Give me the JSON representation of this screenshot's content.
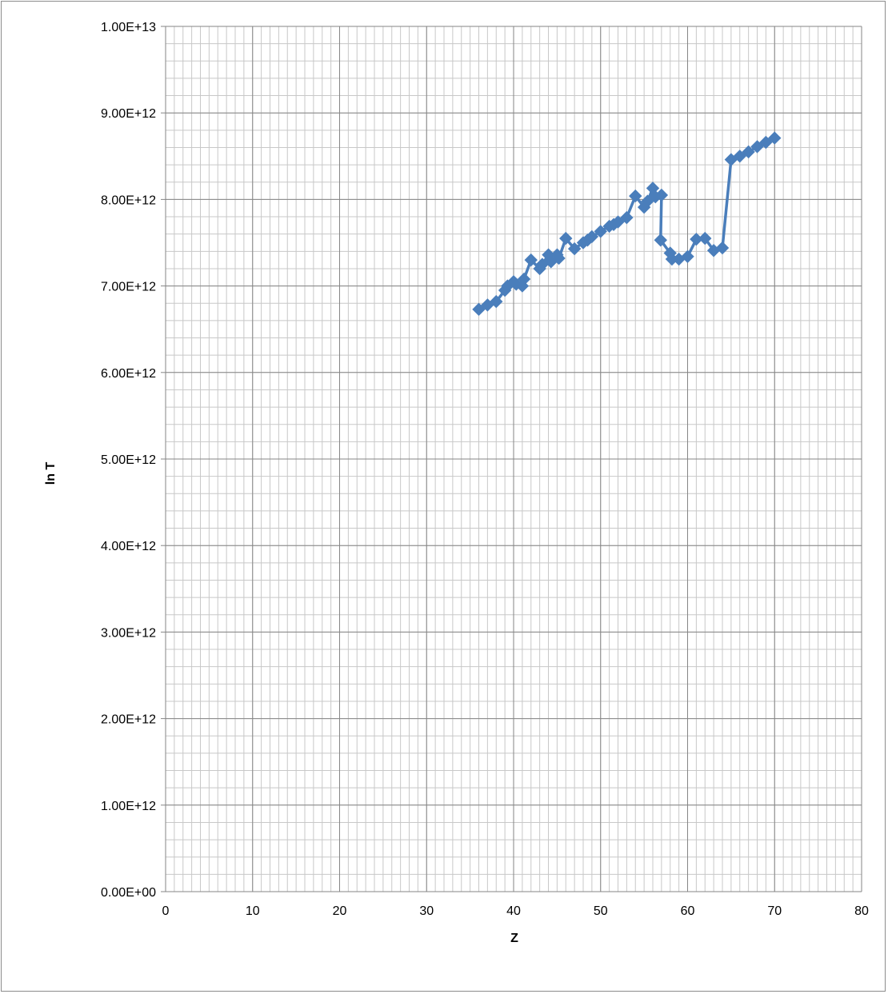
{
  "chart_data": {
    "type": "line",
    "title": "",
    "xlabel": "Z",
    "ylabel": "ln T",
    "xlim": [
      0,
      80
    ],
    "ylim": [
      0,
      10000000000000
    ],
    "x_ticks": [
      0,
      10,
      20,
      30,
      40,
      50,
      60,
      70,
      80
    ],
    "x_tick_labels": [
      "0",
      "10",
      "20",
      "30",
      "40",
      "50",
      "60",
      "70",
      "80"
    ],
    "y_ticks": [
      0,
      1000000000000,
      2000000000000,
      3000000000000,
      4000000000000,
      5000000000000,
      6000000000000,
      7000000000000,
      8000000000000,
      9000000000000,
      10000000000000
    ],
    "y_tick_labels": [
      "0.00E+00",
      "1.00E+12",
      "2.00E+12",
      "3.00E+12",
      "4.00E+12",
      "5.00E+12",
      "6.00E+12",
      "7.00E+12",
      "8.00E+12",
      "9.00E+12",
      "1.00E+13"
    ],
    "grid": true,
    "minor_grid": true,
    "legend": "none",
    "colors": {
      "series": "#4a7ebb",
      "grid_major": "#868686",
      "grid_minor": "#c8c8c8",
      "frame": "#8c8c8c"
    },
    "series": [
      {
        "marker": "diamond",
        "points": [
          [
            36,
            6730000000000.0
          ],
          [
            37,
            6780000000000.0
          ],
          [
            38,
            6820000000000.0
          ],
          [
            39,
            6950000000000.0
          ],
          [
            39.3,
            7000000000000.0
          ],
          [
            40,
            7050000000000.0
          ],
          [
            40.3,
            7020000000000.0
          ],
          [
            41,
            7000000000000.0
          ],
          [
            41.2,
            7080000000000.0
          ],
          [
            42,
            7300000000000.0
          ],
          [
            43,
            7200000000000.0
          ],
          [
            43.3,
            7250000000000.0
          ],
          [
            44,
            7360000000000.0
          ],
          [
            44.3,
            7280000000000.0
          ],
          [
            45,
            7360000000000.0
          ],
          [
            45.2,
            7320000000000.0
          ],
          [
            46,
            7550000000000.0
          ],
          [
            47,
            7430000000000.0
          ],
          [
            48,
            7500000000000.0
          ],
          [
            48.5,
            7530000000000.0
          ],
          [
            49,
            7570000000000.0
          ],
          [
            50,
            7630000000000.0
          ],
          [
            51,
            7690000000000.0
          ],
          [
            51.5,
            7710000000000.0
          ],
          [
            52,
            7740000000000.0
          ],
          [
            53,
            7790000000000.0
          ],
          [
            54,
            8040000000000.0
          ],
          [
            55,
            7910000000000.0
          ],
          [
            55.4,
            7980000000000.0
          ],
          [
            56,
            8130000000000.0
          ],
          [
            56.3,
            8030000000000.0
          ],
          [
            57,
            8050000000000.0
          ],
          [
            56.9,
            7530000000000.0
          ],
          [
            58,
            7380000000000.0
          ],
          [
            58.2,
            7310000000000.0
          ],
          [
            59,
            7310000000000.0
          ],
          [
            60,
            7340000000000.0
          ],
          [
            61,
            7540000000000.0
          ],
          [
            62,
            7550000000000.0
          ],
          [
            63,
            7410000000000.0
          ],
          [
            64,
            7440000000000.0
          ],
          [
            65,
            8460000000000.0
          ],
          [
            66,
            8500000000000.0
          ],
          [
            67,
            8550000000000.0
          ],
          [
            68,
            8610000000000.0
          ],
          [
            69,
            8660000000000.0
          ],
          [
            70,
            8710000000000.0
          ]
        ]
      }
    ]
  }
}
